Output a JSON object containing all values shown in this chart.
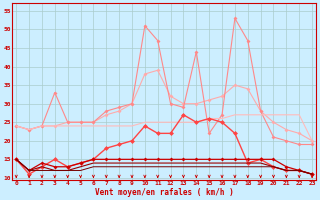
{
  "title": "",
  "xlabel": "Vent moyen/en rafales ( km/h )",
  "background_color": "#cceeff",
  "grid_color": "#aacccc",
  "x": [
    0,
    1,
    2,
    3,
    4,
    5,
    6,
    7,
    8,
    9,
    10,
    11,
    12,
    13,
    14,
    15,
    16,
    17,
    18,
    19,
    20,
    21,
    22,
    23
  ],
  "series": [
    {
      "name": "rafales_max_light",
      "color": "#ffaaaa",
      "alpha": 1.0,
      "linewidth": 0.8,
      "marker": "D",
      "markersize": 2.0,
      "values": [
        24,
        23,
        24,
        24,
        25,
        25,
        25,
        27,
        28,
        30,
        38,
        39,
        32,
        30,
        30,
        31,
        32,
        35,
        34,
        28,
        25,
        23,
        22,
        20
      ]
    },
    {
      "name": "rafales_medium",
      "color": "#ff8888",
      "alpha": 1.0,
      "linewidth": 0.8,
      "marker": "D",
      "markersize": 2.0,
      "values": [
        24,
        23,
        24,
        33,
        25,
        25,
        25,
        28,
        29,
        30,
        51,
        47,
        30,
        29,
        44,
        22,
        27,
        53,
        47,
        28,
        21,
        20,
        19,
        19
      ]
    },
    {
      "name": "rafales_upper_trend",
      "color": "#ffbbbb",
      "alpha": 1.0,
      "linewidth": 0.8,
      "marker": null,
      "markersize": 0,
      "values": [
        24,
        23,
        24,
        24,
        24,
        24,
        24,
        24,
        24,
        24,
        25,
        25,
        25,
        25,
        25,
        26,
        26,
        27,
        27,
        27,
        27,
        27,
        27,
        20
      ]
    },
    {
      "name": "vent_moyen_red",
      "color": "#ff4444",
      "alpha": 1.0,
      "linewidth": 1.0,
      "marker": "D",
      "markersize": 2.5,
      "values": [
        15,
        11,
        13,
        15,
        13,
        14,
        15,
        18,
        19,
        20,
        24,
        22,
        22,
        27,
        25,
        26,
        25,
        22,
        14,
        15,
        13,
        12,
        12,
        11
      ]
    },
    {
      "name": "vent_moyen_dark1",
      "color": "#cc0000",
      "alpha": 1.0,
      "linewidth": 0.9,
      "marker": "D",
      "markersize": 2.0,
      "values": [
        15,
        12,
        14,
        13,
        13,
        14,
        15,
        15,
        15,
        15,
        15,
        15,
        15,
        15,
        15,
        15,
        15,
        15,
        15,
        15,
        15,
        13,
        12,
        11
      ]
    },
    {
      "name": "vent_moyen_dark2",
      "color": "#990000",
      "alpha": 1.0,
      "linewidth": 0.8,
      "marker": null,
      "markersize": 0,
      "values": [
        15,
        12,
        13,
        12,
        12,
        13,
        14,
        14,
        14,
        14,
        14,
        14,
        14,
        14,
        14,
        14,
        14,
        14,
        14,
        14,
        13,
        12,
        12,
        11
      ]
    },
    {
      "name": "vent_moyen_dark3",
      "color": "#770000",
      "alpha": 1.0,
      "linewidth": 0.7,
      "marker": null,
      "markersize": 0,
      "values": [
        15,
        12,
        12,
        12,
        12,
        12,
        13,
        13,
        13,
        13,
        13,
        13,
        13,
        13,
        13,
        13,
        13,
        13,
        13,
        13,
        13,
        12,
        12,
        11
      ]
    }
  ],
  "ylim": [
    9.5,
    57
  ],
  "yticks": [
    10,
    15,
    20,
    25,
    30,
    35,
    40,
    45,
    50,
    55
  ],
  "xlim": [
    -0.3,
    23.3
  ],
  "xticks": [
    0,
    1,
    2,
    3,
    4,
    5,
    6,
    7,
    8,
    9,
    10,
    11,
    12,
    13,
    14,
    15,
    16,
    17,
    18,
    19,
    20,
    21,
    22,
    23
  ]
}
